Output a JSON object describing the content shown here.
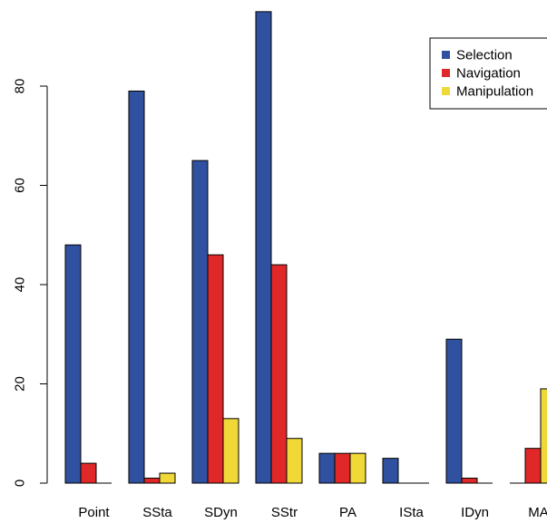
{
  "chart_data": {
    "type": "bar",
    "categories": [
      "Point",
      "SSta",
      "SDyn",
      "SStr",
      "PA",
      "ISta",
      "IDyn",
      "MA"
    ],
    "series": [
      {
        "name": "Selection",
        "color": "#3050A0",
        "values": [
          48,
          79,
          65,
          95,
          6,
          5,
          29,
          0
        ]
      },
      {
        "name": "Navigation",
        "color": "#E02828",
        "values": [
          4,
          1,
          46,
          44,
          6,
          0,
          1,
          7
        ]
      },
      {
        "name": "Manipulation",
        "color": "#F0D838",
        "values": [
          0,
          2,
          13,
          9,
          6,
          0,
          0,
          19
        ]
      }
    ],
    "yticks": [
      0,
      20,
      40,
      60,
      80
    ],
    "ylim": [
      0,
      95
    ],
    "title": "",
    "xlabel": "",
    "ylabel": "",
    "legend_position": "top-right",
    "grid": false
  }
}
